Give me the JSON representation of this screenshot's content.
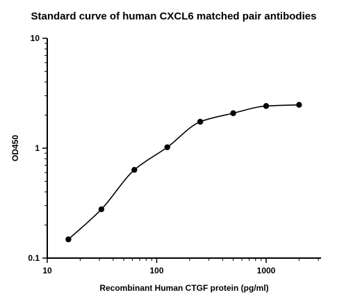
{
  "chart_data": {
    "type": "scatter",
    "title": "Standard curve of human CXCL6 matched pair antibodies",
    "xlabel": "Recombinant Human CTGF protein (pg/ml)",
    "ylabel": "OD450",
    "x_scale": "log",
    "y_scale": "log",
    "xlim": [
      10,
      3000
    ],
    "ylim": [
      0.1,
      10
    ],
    "x_ticks": [
      "10",
      "100",
      "1000"
    ],
    "y_ticks": [
      "0.1",
      "1",
      "10"
    ],
    "grid": false,
    "series": [
      {
        "x": [
          15.6,
          31.25,
          62.5,
          125,
          250,
          500,
          1000,
          2000
        ],
        "y": [
          0.148,
          0.278,
          0.635,
          1.02,
          1.74,
          2.08,
          2.42,
          2.48
        ],
        "fit": "four-parameter logistic curve"
      }
    ]
  }
}
